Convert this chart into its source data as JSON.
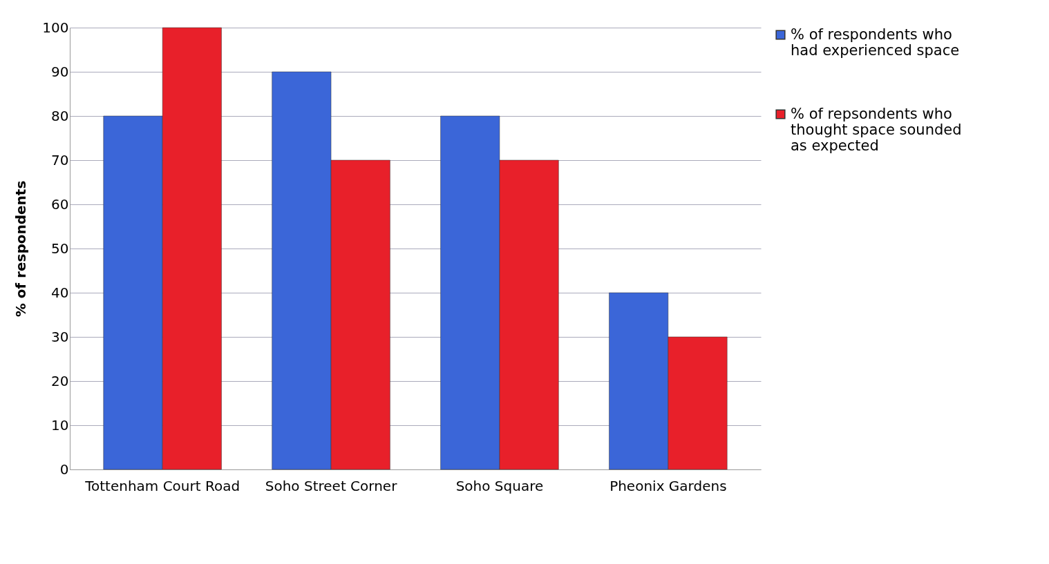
{
  "chart_data": {
    "type": "bar",
    "ylabel": "% of respondents",
    "categories": [
      "Tottenham Court Road",
      "Soho Street Corner",
      "Soho Square",
      "Pheonix Gardens"
    ],
    "series": [
      {
        "name": "% of respondents who had experienced space",
        "color": "#3b66d8",
        "values": [
          80,
          90,
          80,
          40
        ]
      },
      {
        "name": "% of repsondents who thought space sounded as expected",
        "color": "#e8202a",
        "values": [
          100,
          70,
          70,
          30
        ]
      }
    ],
    "ylim": [
      0,
      100
    ],
    "yticks": [
      0,
      10,
      20,
      30,
      40,
      50,
      60,
      70,
      80,
      90,
      100
    ],
    "grid": "y",
    "legend": "right"
  }
}
